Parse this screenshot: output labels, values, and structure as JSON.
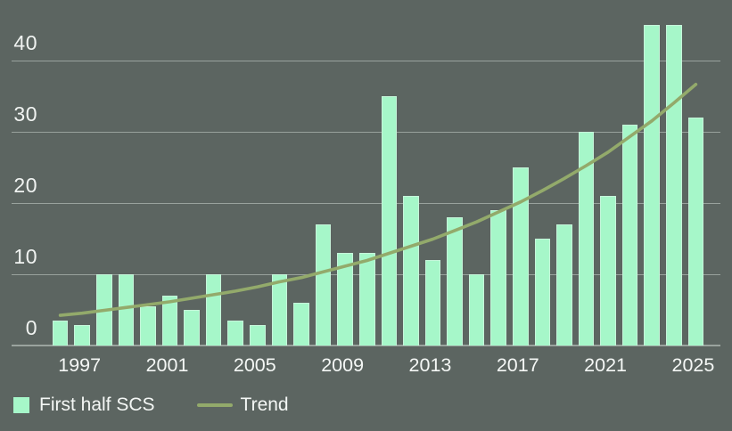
{
  "chart_data": {
    "type": "bar",
    "title": "",
    "xlabel": "",
    "ylabel": "",
    "categories": [
      1996,
      1997,
      1998,
      1999,
      2000,
      2001,
      2002,
      2003,
      2004,
      2005,
      2006,
      2007,
      2008,
      2009,
      2010,
      2011,
      2012,
      2013,
      2014,
      2015,
      2016,
      2017,
      2018,
      2019,
      2020,
      2021,
      2022,
      2023,
      2024,
      2025
    ],
    "series": [
      {
        "name": "First half SCS",
        "type": "bar",
        "color": "#a6f7c9",
        "values": [
          3.5,
          2.8,
          10,
          10,
          5.5,
          7,
          5,
          10,
          3.5,
          2.8,
          10,
          6,
          17,
          13,
          13,
          35,
          21,
          12,
          18,
          10,
          19,
          25,
          15,
          17,
          30,
          21,
          31,
          45,
          45,
          32
        ]
      },
      {
        "name": "Trend",
        "type": "line",
        "color": "#93aa6b",
        "values": [
          4.2,
          4.5,
          4.9,
          5.3,
          5.7,
          6.1,
          6.6,
          7.1,
          7.6,
          8.2,
          8.9,
          9.5,
          10.3,
          11.1,
          11.9,
          12.9,
          13.9,
          14.9,
          16.1,
          17.3,
          18.7,
          20.1,
          21.7,
          23.4,
          25.2,
          27.1,
          29.3,
          31.5,
          34.0,
          36.6
        ]
      }
    ],
    "xticks": [
      1997,
      2001,
      2005,
      2009,
      2013,
      2017,
      2021,
      2025
    ],
    "yticks": [
      0,
      10,
      20,
      30,
      40
    ],
    "ylim": [
      0,
      48.4
    ],
    "grid": "horizontal",
    "legend_position": "bottom-left"
  },
  "legend": {
    "bar_label": "First half SCS",
    "line_label": "Trend"
  },
  "colors": {
    "background": "#5c6561",
    "bar_fill": "#a6f7c9",
    "bar_edge": "#c6f5da",
    "trend_line": "#93aa6b",
    "gridline": "#99a29d",
    "text": "#f4f7f5"
  }
}
